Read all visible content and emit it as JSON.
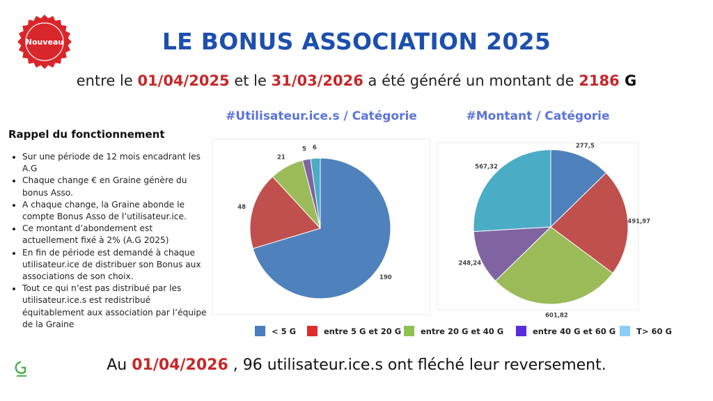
{
  "badge": "Nouveau",
  "title": "LE BONUS ASSOCIATION 2025",
  "subtitle": [
    "entre le ",
    "01/04/2025",
    " et le ",
    "31/03/2026",
    " a été généré un montant de ",
    "2186",
    " G"
  ],
  "reminder": {
    "title": "Rappel du fonctionnement",
    "items": [
      "Sur une période de 12 mois encadrant les A.G",
      "Chaque change € en Graine génère du bonus Asso.",
      "A chaque change, la Graine abonde le compte Bonus Asso de l’utilisateur.ice.",
      "Ce montant d’abondement est actuellement fixé à 2% (A.G 2025)",
      "En fin de période est demandé à chaque utilisateur.ice de distribuer son Bonus aux associations de son choix.",
      "Tout ce qui n’est pas distribué par les utilisateur.ice.s est redistribué équitablement aux association par l’équipe de la Graine"
    ]
  },
  "legend": {
    "labels": [
      "< 5 G",
      "entre 5 G et 20 G",
      "entre 20 G et 40 G",
      "entre 40 G et 60 G",
      "T> 60 G"
    ],
    "colors": [
      "#4a7cc0",
      "#e02b2b",
      "#8cc152",
      "#5b2be0",
      "#8ecdf7"
    ]
  },
  "footer": [
    "Au ",
    "01/04/2026",
    " , 96 utilisateur.ice.s ont fléché leur reversement."
  ],
  "chart_data": [
    {
      "type": "pie",
      "title": "#Utilisateur.ice.s / Catégorie",
      "values": [
        190,
        48,
        21,
        5,
        6
      ],
      "colors": [
        "#4f81bd",
        "#c0504d",
        "#9bbb59",
        "#8064a2",
        "#4bacc6"
      ]
    },
    {
      "type": "pie",
      "title": "#Montant / Catégorie",
      "values": [
        277.5,
        491.97,
        601.82,
        248.24,
        567.32
      ],
      "value_labels": [
        "277,5",
        "491,97",
        "601,82",
        "248,24",
        "567,32"
      ],
      "colors": [
        "#4f81bd",
        "#c0504d",
        "#9bbb59",
        "#8064a2",
        "#4bacc6"
      ]
    }
  ]
}
